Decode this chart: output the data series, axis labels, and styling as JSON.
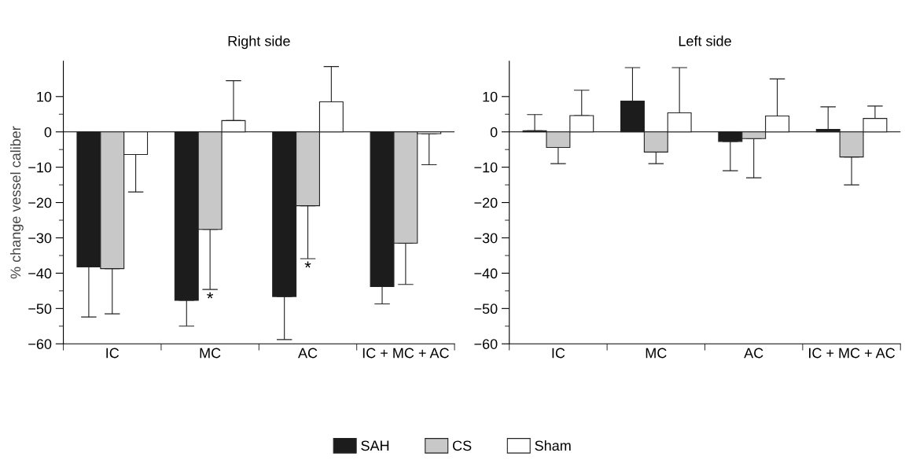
{
  "chart_data": [
    {
      "type": "bar",
      "title": "Right side",
      "ylabel": "% change vessel caliber",
      "categories": [
        "IC",
        "MC",
        "AC",
        "IC + MC + AC"
      ],
      "ylim": [
        -60,
        20
      ],
      "yticks": [
        -60,
        -50,
        -40,
        -30,
        -20,
        -10,
        0,
        10
      ],
      "grid": false,
      "legend": "bottom",
      "ref_lines": [
        {
          "axis": "y",
          "value": 0,
          "color": "#333333"
        }
      ],
      "annotations": [
        {
          "text": "*",
          "x": "MC",
          "y": -44.6
        },
        {
          "text": "*",
          "x": "AC",
          "y": -35.9
        }
      ],
      "series": [
        {
          "name": "SAH",
          "color": "#1c1c1c",
          "values": [
            -38.2,
            -47.7,
            -46.6,
            -43.8
          ],
          "errors": [
            [
              -52.4,
              -38.2
            ],
            [
              -55,
              -47.7
            ],
            [
              -58.8,
              -46.6
            ],
            [
              -48.7,
              -43.8
            ]
          ]
        },
        {
          "name": "CS",
          "color": "#c8c8c8",
          "values": [
            -38.7,
            -27.6,
            -20.9,
            -31.5
          ],
          "errors": [
            [
              -51.5,
              -38.7
            ],
            [
              -44.6,
              -27.6
            ],
            [
              -35.9,
              -20.9
            ],
            [
              -43.2,
              -31.5
            ]
          ]
        },
        {
          "name": "Sham",
          "color": "#ffffff",
          "values": [
            -6.4,
            3.2,
            8.5,
            -0.5
          ],
          "errors": [
            [
              -17,
              -6.4
            ],
            [
              3.2,
              14.5
            ],
            [
              8.5,
              18.5
            ],
            [
              -9.3,
              -0.5
            ]
          ]
        }
      ]
    },
    {
      "type": "bar",
      "title": "Left side",
      "categories": [
        "IC",
        "MC",
        "AC",
        "IC + MC + AC"
      ],
      "ylim": [
        -60,
        20
      ],
      "yticks": [
        -60,
        -50,
        -40,
        -30,
        -20,
        -10,
        0,
        10
      ],
      "grid": false,
      "ref_lines": [
        {
          "axis": "y",
          "value": 0,
          "color": "#333333"
        }
      ],
      "series": [
        {
          "color": "#1c1c1c",
          "values": [
            0.3,
            8.7,
            -2.7,
            0.7
          ],
          "errors": [
            [
              0.3,
              4.9
            ],
            [
              8.7,
              18.2
            ],
            [
              -11,
              -2.7
            ],
            [
              0.7,
              7.1
            ]
          ]
        },
        {
          "color": "#c8c8c8",
          "values": [
            -4.4,
            -5.7,
            -1.9,
            -7.1
          ],
          "errors": [
            [
              -9,
              -4.4
            ],
            [
              -9,
              -5.7
            ],
            [
              -13,
              -1.9
            ],
            [
              -15,
              -7.1
            ]
          ]
        },
        {
          "color": "#ffffff",
          "values": [
            4.6,
            5.4,
            4.5,
            3.8
          ],
          "errors": [
            [
              4.6,
              11.8
            ],
            [
              5.4,
              18.2
            ],
            [
              4.5,
              15
            ],
            [
              3.8,
              7.3
            ]
          ]
        }
      ]
    }
  ]
}
